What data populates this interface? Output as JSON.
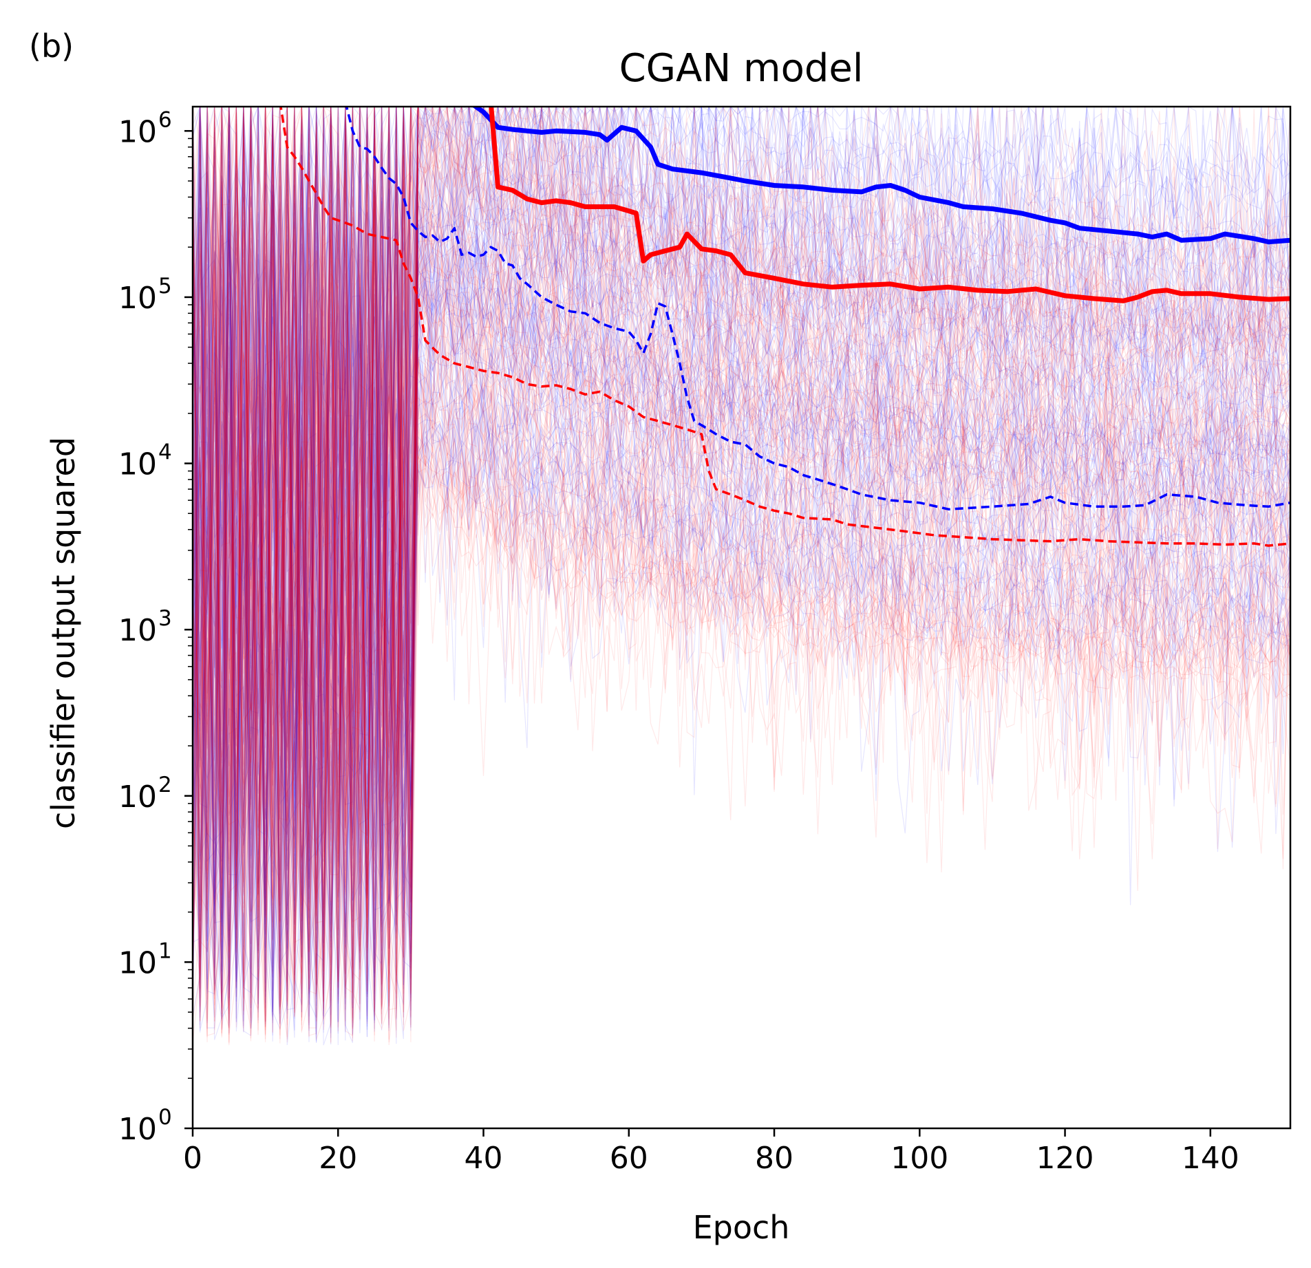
{
  "panel_label": "(b)",
  "colors": {
    "series_a": "#0000ff",
    "series_b": "#ff0000",
    "axis": "#000000"
  },
  "chart_data": {
    "type": "line",
    "title": "CGAN model",
    "xlabel": "Epoch",
    "ylabel": "classifier output squared",
    "xscale": "linear",
    "yscale": "log",
    "xlim": [
      0,
      151
    ],
    "ylim": [
      1,
      1400000
    ],
    "xticks": [
      0,
      20,
      40,
      60,
      80,
      100,
      120,
      140
    ],
    "xtick_labels": [
      "0",
      "20",
      "40",
      "60",
      "80",
      "100",
      "120",
      "140"
    ],
    "yticks": [
      1,
      10,
      100,
      1000,
      10000,
      100000,
      1000000
    ],
    "ytick_labels": [
      {
        "base": "10",
        "exp": "0"
      },
      {
        "base": "10",
        "exp": "1"
      },
      {
        "base": "10",
        "exp": "2"
      },
      {
        "base": "10",
        "exp": "3"
      },
      {
        "base": "10",
        "exp": "4"
      },
      {
        "base": "10",
        "exp": "5"
      },
      {
        "base": "10",
        "exp": "6"
      }
    ],
    "legend": null,
    "background_traces": {
      "description_count_per_color": 120,
      "colors": [
        "#0000ff",
        "#ff0000"
      ]
    },
    "series": [
      {
        "name": "blue max",
        "color": "#0000ff",
        "style": "solid",
        "points": [
          [
            38,
            1500000
          ],
          [
            40,
            1300000
          ],
          [
            42,
            1050000
          ],
          [
            44,
            1020000
          ],
          [
            46,
            1000000
          ],
          [
            48,
            980000
          ],
          [
            50,
            1000000
          ],
          [
            54,
            980000
          ],
          [
            56,
            950000
          ],
          [
            57,
            880000
          ],
          [
            59,
            1050000
          ],
          [
            61,
            1000000
          ],
          [
            63,
            800000
          ],
          [
            64,
            630000
          ],
          [
            66,
            590000
          ],
          [
            70,
            560000
          ],
          [
            74,
            520000
          ],
          [
            76,
            500000
          ],
          [
            80,
            470000
          ],
          [
            84,
            460000
          ],
          [
            88,
            440000
          ],
          [
            92,
            430000
          ],
          [
            94,
            460000
          ],
          [
            96,
            470000
          ],
          [
            98,
            440000
          ],
          [
            100,
            400000
          ],
          [
            104,
            370000
          ],
          [
            106,
            350000
          ],
          [
            110,
            340000
          ],
          [
            114,
            320000
          ],
          [
            118,
            290000
          ],
          [
            120,
            280000
          ],
          [
            122,
            260000
          ],
          [
            126,
            250000
          ],
          [
            130,
            240000
          ],
          [
            132,
            230000
          ],
          [
            134,
            240000
          ],
          [
            136,
            220000
          ],
          [
            140,
            225000
          ],
          [
            142,
            240000
          ],
          [
            146,
            225000
          ],
          [
            148,
            215000
          ],
          [
            151,
            220000
          ]
        ]
      },
      {
        "name": "red max",
        "color": "#ff0000",
        "style": "solid",
        "points": [
          [
            36,
            1500000
          ],
          [
            41,
            1500000
          ],
          [
            42,
            460000
          ],
          [
            44,
            440000
          ],
          [
            46,
            390000
          ],
          [
            48,
            370000
          ],
          [
            50,
            380000
          ],
          [
            52,
            370000
          ],
          [
            54,
            350000
          ],
          [
            58,
            350000
          ],
          [
            60,
            330000
          ],
          [
            61,
            320000
          ],
          [
            62,
            165000
          ],
          [
            63,
            180000
          ],
          [
            65,
            190000
          ],
          [
            67,
            200000
          ],
          [
            68,
            240000
          ],
          [
            70,
            195000
          ],
          [
            72,
            190000
          ],
          [
            74,
            180000
          ],
          [
            76,
            140000
          ],
          [
            80,
            130000
          ],
          [
            84,
            120000
          ],
          [
            88,
            115000
          ],
          [
            92,
            118000
          ],
          [
            96,
            120000
          ],
          [
            100,
            112000
          ],
          [
            104,
            115000
          ],
          [
            108,
            110000
          ],
          [
            112,
            108000
          ],
          [
            116,
            112000
          ],
          [
            120,
            102000
          ],
          [
            124,
            98000
          ],
          [
            128,
            95000
          ],
          [
            130,
            100000
          ],
          [
            132,
            108000
          ],
          [
            134,
            110000
          ],
          [
            136,
            105000
          ],
          [
            140,
            105000
          ],
          [
            144,
            100000
          ],
          [
            148,
            97000
          ],
          [
            151,
            98000
          ]
        ]
      },
      {
        "name": "blue median",
        "color": "#0000ff",
        "style": "dashed",
        "points": [
          [
            21,
            1500000
          ],
          [
            22,
            1000000
          ],
          [
            23,
            800000
          ],
          [
            24,
            780000
          ],
          [
            25,
            700000
          ],
          [
            26,
            600000
          ],
          [
            27,
            520000
          ],
          [
            28,
            480000
          ],
          [
            29,
            400000
          ],
          [
            30,
            280000
          ],
          [
            31,
            250000
          ],
          [
            32,
            230000
          ],
          [
            33,
            235000
          ],
          [
            34,
            215000
          ],
          [
            35,
            225000
          ],
          [
            36,
            260000
          ],
          [
            37,
            180000
          ],
          [
            38,
            185000
          ],
          [
            39,
            175000
          ],
          [
            40,
            180000
          ],
          [
            41,
            200000
          ],
          [
            42,
            190000
          ],
          [
            43,
            160000
          ],
          [
            44,
            155000
          ],
          [
            45,
            130000
          ],
          [
            46,
            120000
          ],
          [
            48,
            100000
          ],
          [
            50,
            90000
          ],
          [
            52,
            82000
          ],
          [
            54,
            80000
          ],
          [
            56,
            70000
          ],
          [
            58,
            65000
          ],
          [
            60,
            62000
          ],
          [
            61,
            55000
          ],
          [
            62,
            46000
          ],
          [
            63,
            60000
          ],
          [
            64,
            92000
          ],
          [
            65,
            88000
          ],
          [
            66,
            60000
          ],
          [
            67,
            40000
          ],
          [
            68,
            25000
          ],
          [
            69,
            18000
          ],
          [
            70,
            17000
          ],
          [
            72,
            15000
          ],
          [
            74,
            13500
          ],
          [
            76,
            13000
          ],
          [
            78,
            11000
          ],
          [
            80,
            10000
          ],
          [
            82,
            9500
          ],
          [
            84,
            8500
          ],
          [
            86,
            8000
          ],
          [
            88,
            7500
          ],
          [
            90,
            7000
          ],
          [
            92,
            6500
          ],
          [
            96,
            6000
          ],
          [
            100,
            5800
          ],
          [
            104,
            5300
          ],
          [
            110,
            5500
          ],
          [
            115,
            5700
          ],
          [
            118,
            6300
          ],
          [
            120,
            5800
          ],
          [
            124,
            5500
          ],
          [
            128,
            5500
          ],
          [
            131,
            5600
          ],
          [
            134,
            6500
          ],
          [
            138,
            6300
          ],
          [
            141,
            5800
          ],
          [
            145,
            5600
          ],
          [
            148,
            5500
          ],
          [
            151,
            5800
          ]
        ]
      },
      {
        "name": "red median",
        "color": "#ff0000",
        "style": "dashed",
        "points": [
          [
            12,
            1500000
          ],
          [
            13,
            800000
          ],
          [
            14,
            700000
          ],
          [
            15,
            600000
          ],
          [
            16,
            500000
          ],
          [
            17,
            420000
          ],
          [
            18,
            350000
          ],
          [
            19,
            300000
          ],
          [
            20,
            290000
          ],
          [
            21,
            280000
          ],
          [
            22,
            270000
          ],
          [
            24,
            240000
          ],
          [
            26,
            230000
          ],
          [
            28,
            220000
          ],
          [
            29,
            160000
          ],
          [
            30,
            130000
          ],
          [
            31,
            100000
          ],
          [
            32,
            55000
          ],
          [
            34,
            45000
          ],
          [
            36,
            40000
          ],
          [
            38,
            38000
          ],
          [
            40,
            36000
          ],
          [
            42,
            35000
          ],
          [
            44,
            33000
          ],
          [
            46,
            30000
          ],
          [
            48,
            29000
          ],
          [
            50,
            29500
          ],
          [
            52,
            28000
          ],
          [
            54,
            26000
          ],
          [
            56,
            27000
          ],
          [
            58,
            24000
          ],
          [
            60,
            22000
          ],
          [
            62,
            19000
          ],
          [
            64,
            18000
          ],
          [
            66,
            17000
          ],
          [
            68,
            16000
          ],
          [
            70,
            15000
          ],
          [
            71,
            9000
          ],
          [
            72,
            7000
          ],
          [
            74,
            6500
          ],
          [
            76,
            6000
          ],
          [
            78,
            5500
          ],
          [
            80,
            5200
          ],
          [
            82,
            5000
          ],
          [
            84,
            4700
          ],
          [
            88,
            4600
          ],
          [
            90,
            4300
          ],
          [
            94,
            4100
          ],
          [
            98,
            3900
          ],
          [
            102,
            3700
          ],
          [
            106,
            3600
          ],
          [
            110,
            3500
          ],
          [
            114,
            3450
          ],
          [
            118,
            3400
          ],
          [
            122,
            3500
          ],
          [
            126,
            3400
          ],
          [
            130,
            3350
          ],
          [
            134,
            3300
          ],
          [
            138,
            3300
          ],
          [
            142,
            3250
          ],
          [
            146,
            3300
          ],
          [
            148,
            3200
          ],
          [
            151,
            3300
          ]
        ]
      }
    ]
  }
}
